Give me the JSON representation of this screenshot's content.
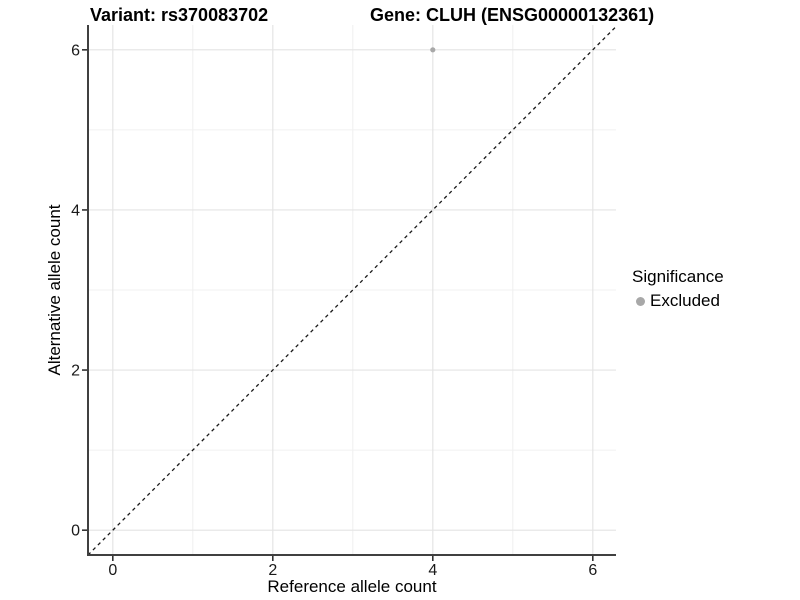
{
  "titles": {
    "variant": "Variant: rs370083702",
    "gene": "Gene: CLUH (ENSG00000132361)"
  },
  "axes": {
    "x": {
      "label": "Reference allele count",
      "ticks": [
        0,
        2,
        4,
        6
      ],
      "minor_ticks": [
        1,
        3,
        5
      ]
    },
    "y": {
      "label": "Alternative allele count",
      "ticks": [
        0,
        2,
        4,
        6
      ],
      "minor_ticks": [
        1,
        3,
        5
      ]
    }
  },
  "legend": {
    "title": "Significance",
    "items": [
      {
        "label": "Excluded",
        "color": "#a8a8a8",
        "marker": "circle"
      }
    ]
  },
  "chart_data": {
    "type": "scatter",
    "title": "Variant: rs370083702 / Gene: CLUH (ENSG00000132361)",
    "xlabel": "Reference allele count",
    "ylabel": "Alternative allele count",
    "xlim": [
      -0.31,
      6.29
    ],
    "ylim": [
      -0.31,
      6.31
    ],
    "x_ticks": [
      0,
      2,
      4,
      6
    ],
    "y_ticks": [
      0,
      2,
      4,
      6
    ],
    "grid": true,
    "legend_position": "right",
    "series": [
      {
        "name": "Excluded",
        "color": "#a8a8a8",
        "marker_radius": 2.6,
        "points": [
          {
            "x": 4,
            "y": 6
          }
        ]
      }
    ],
    "reference_line": {
      "type": "identity",
      "linestyle": "dashed",
      "color": "#1a1a1a"
    }
  },
  "colors": {
    "background": "#ffffff",
    "grid_major": "#e4e4e4",
    "grid_minor": "#f0f0f0",
    "axis_line": "#404040",
    "tick_mark": "#333333",
    "text": "#1a1a1a"
  }
}
